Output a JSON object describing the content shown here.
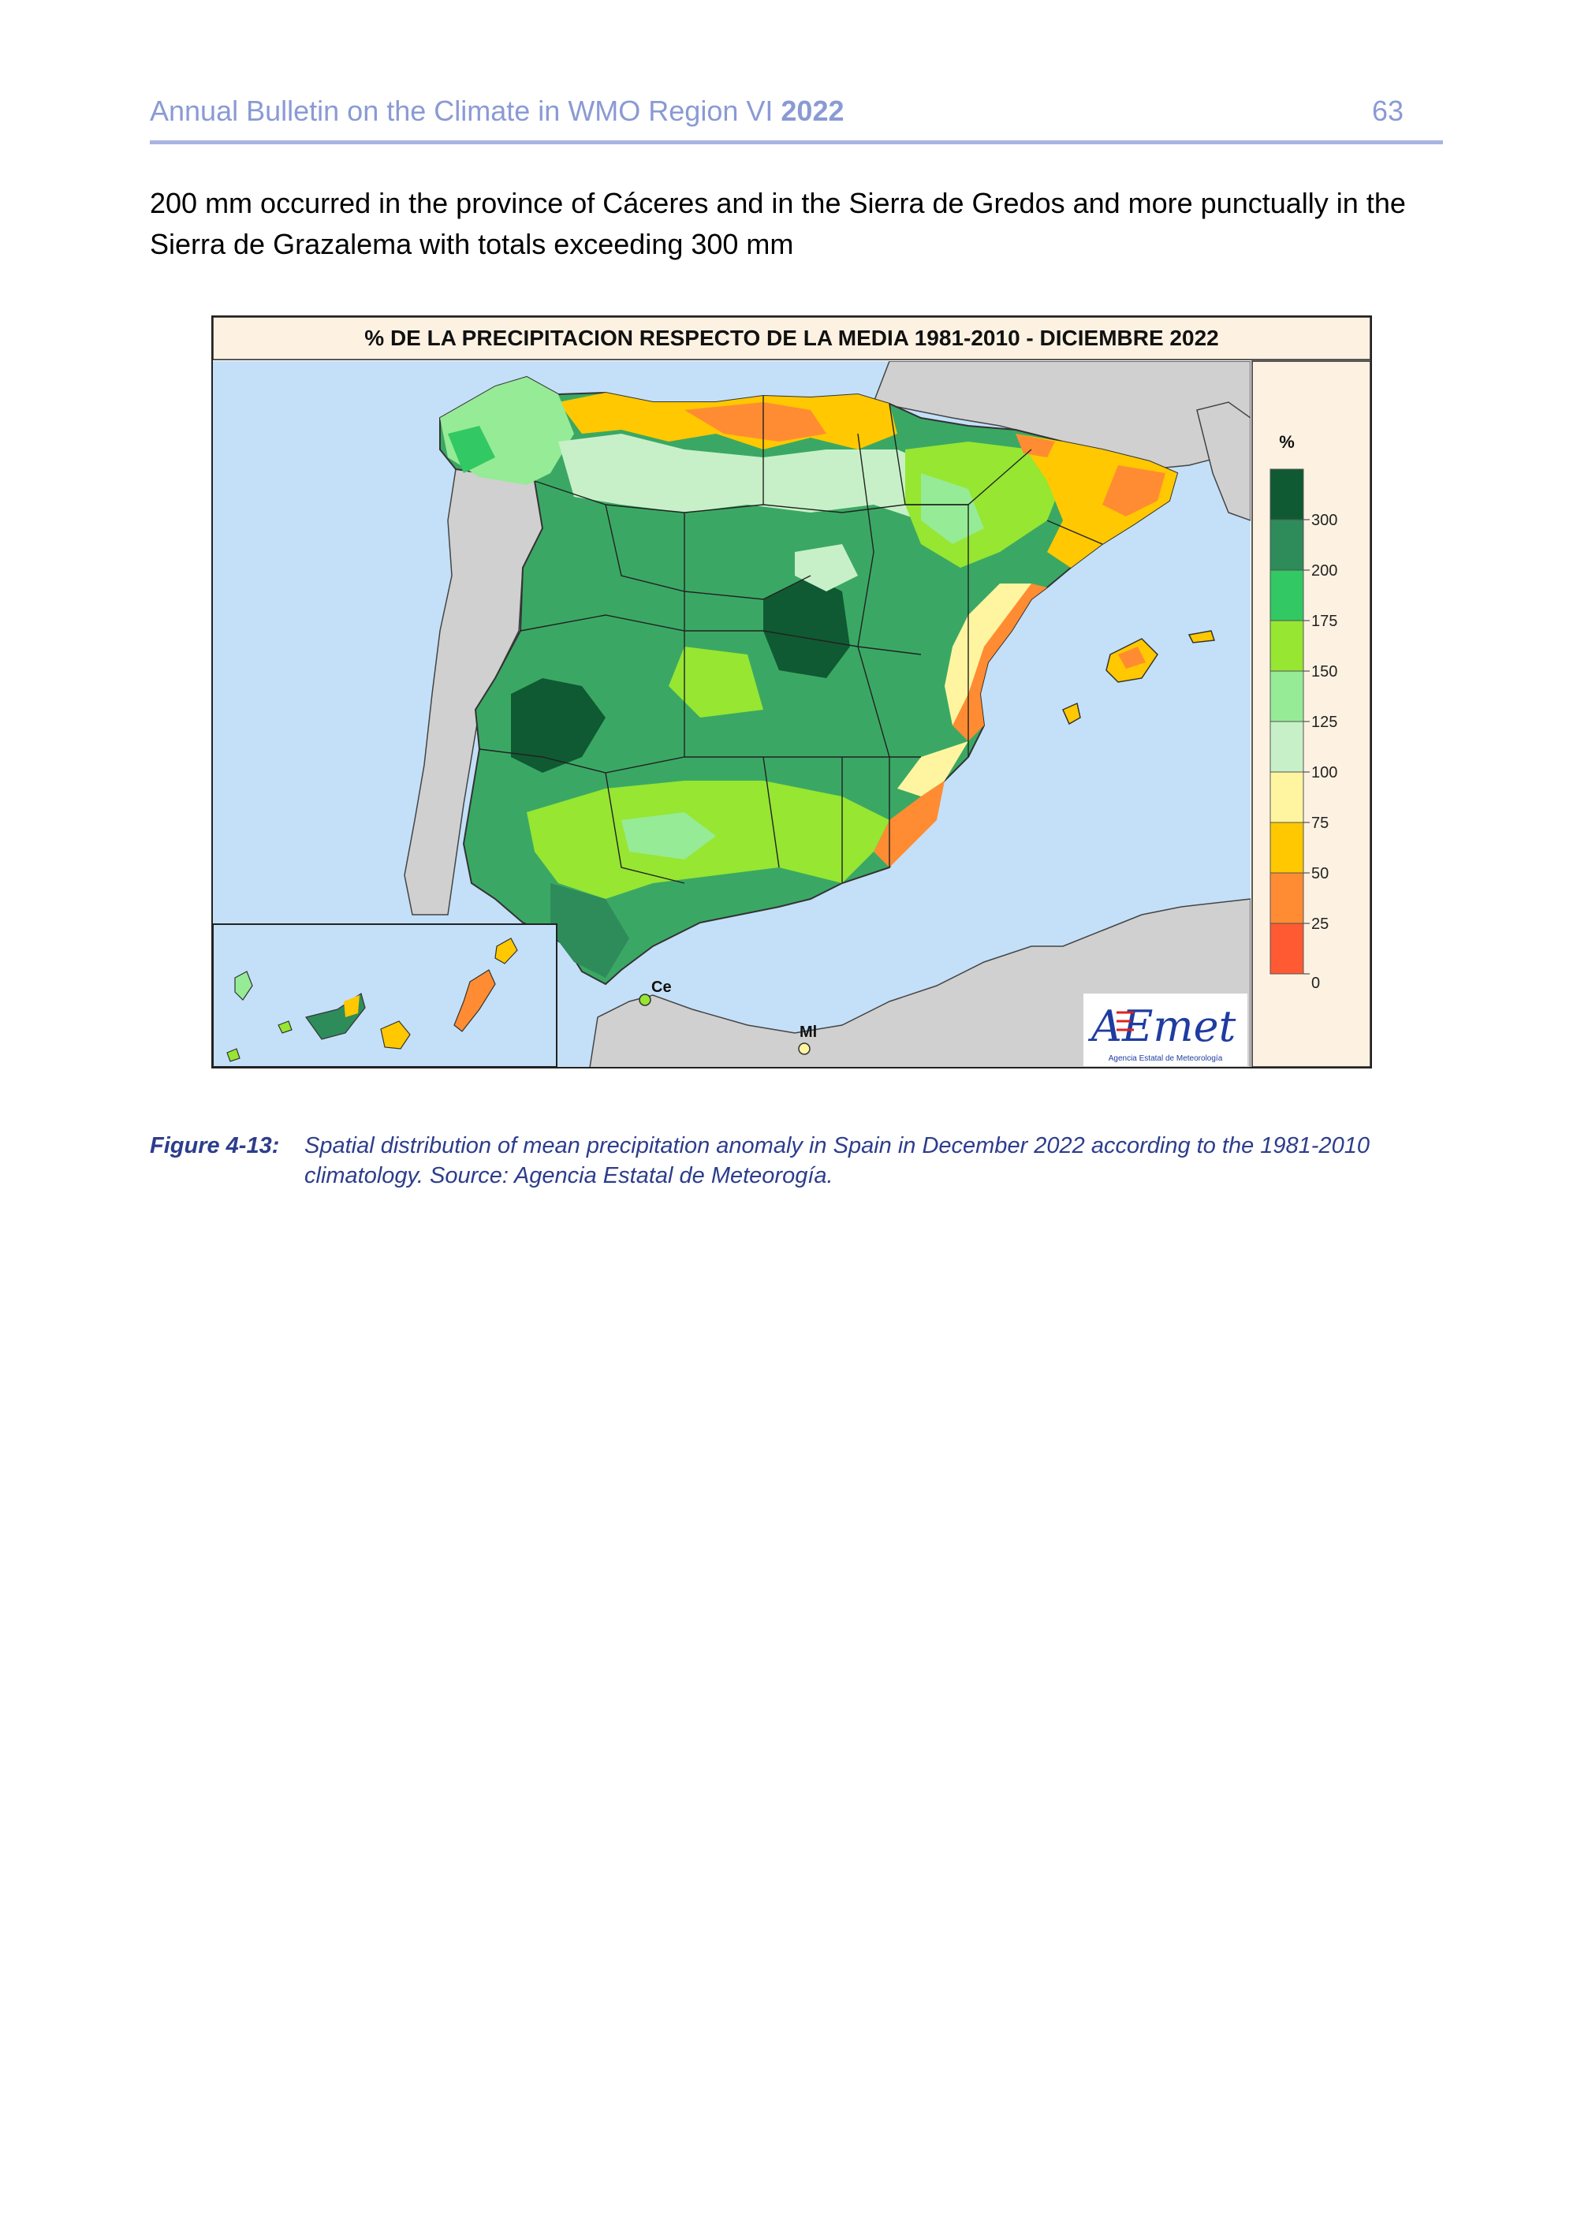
{
  "header": {
    "title": "Annual Bulletin on the Climate in WMO Region VI",
    "year": "2022",
    "page_number": "63"
  },
  "body": {
    "paragraph": "200 mm occurred in the province of Cáceres and in the Sierra de Gredos and more punctually in the Sierra de Grazalema with totals exceeding 300 mm"
  },
  "figure": {
    "map_title": "% DE LA PRECIPITACION RESPECTO DE LA MEDIA 1981-2010 - DICIEMBRE 2022",
    "legend_unit": "%",
    "legend_colors": [
      "#ff5a32",
      "#ff8c32",
      "#ffc800",
      "#fff5a0",
      "#c8f0c8",
      "#96eb96",
      "#96e632",
      "#32c864",
      "#2d8c5a",
      "#0f5a32"
    ],
    "legend_ticks": [
      "0",
      "25",
      "50",
      "75",
      "100",
      "125",
      "150",
      "175",
      "200",
      "300"
    ],
    "place_labels": [
      "Ce",
      "Ml"
    ],
    "logo_text": "AEmet",
    "logo_subtext": "Agencia Estatal de Meteorología"
  },
  "caption": {
    "label": "Figure 4-13:",
    "text": "Spatial distribution of mean precipitation anomaly in Spain in December 2022 according to the 1981-2010 climatology. Source: Agencia Estatal de Meteorogía."
  }
}
